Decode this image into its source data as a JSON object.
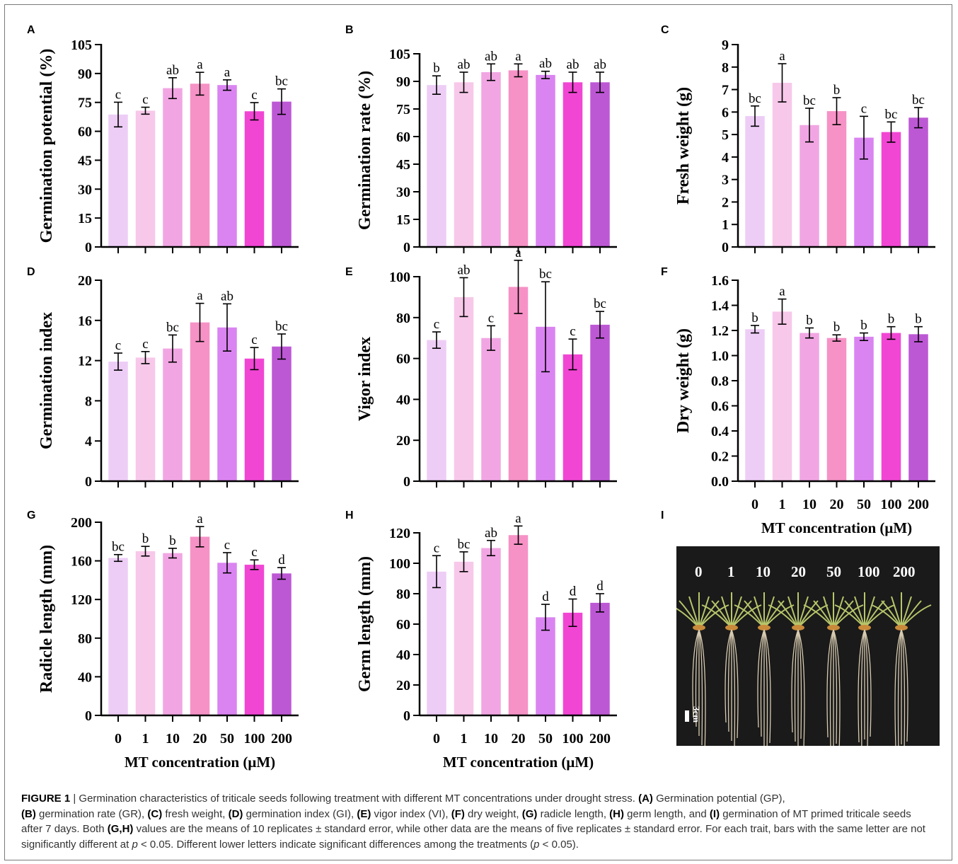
{
  "chart_data": [
    {
      "panel": "A",
      "type": "bar",
      "ylabel": "Germination potential (%)",
      "ylim": [
        0,
        105
      ],
      "yticks": [
        0,
        15,
        30,
        45,
        60,
        75,
        90,
        105
      ],
      "ytick_labels": [
        "0",
        "15",
        "30",
        "45",
        "60",
        "75",
        "90",
        "105"
      ],
      "categories": [
        "0",
        "1",
        "10",
        "20",
        "50",
        "100",
        "200"
      ],
      "values": [
        68.7,
        70.7,
        82.4,
        84.7,
        84.0,
        70.4,
        75.4
      ],
      "errors": [
        6.4,
        1.8,
        5.4,
        5.9,
        2.7,
        4.5,
        6.6
      ],
      "letters": [
        "c",
        "c",
        "ab",
        "a",
        "a",
        "c",
        "bc"
      ],
      "xlabel": ""
    },
    {
      "panel": "B",
      "type": "bar",
      "ylabel": "Germination rate (%)",
      "ylim": [
        0,
        105
      ],
      "yticks": [
        0,
        15,
        30,
        45,
        60,
        75,
        90,
        105
      ],
      "ytick_labels": [
        "0",
        "15",
        "30",
        "45",
        "60",
        "75",
        "90",
        "105"
      ],
      "categories": [
        "0",
        "1",
        "10",
        "20",
        "50",
        "100",
        "200"
      ],
      "values": [
        88.0,
        89.5,
        95.0,
        96.0,
        93.5,
        89.5,
        89.5
      ],
      "errors": [
        5.0,
        5.5,
        4.5,
        3.5,
        2.0,
        5.5,
        5.5
      ],
      "letters": [
        "b",
        "ab",
        "ab",
        "a",
        "ab",
        "ab",
        "ab"
      ],
      "xlabel": ""
    },
    {
      "panel": "C",
      "type": "bar",
      "ylabel": "Fresh weight (g)",
      "ylim": [
        0,
        9
      ],
      "yticks": [
        0,
        1,
        2,
        3,
        4,
        5,
        6,
        7,
        8,
        9
      ],
      "ytick_labels": [
        "0",
        "1",
        "2",
        "3",
        "4",
        "5",
        "6",
        "7",
        "8",
        "9"
      ],
      "categories": [
        "0",
        "1",
        "10",
        "20",
        "50",
        "100",
        "200"
      ],
      "values": [
        5.82,
        7.3,
        5.42,
        6.04,
        4.86,
        5.11,
        5.75
      ],
      "errors": [
        0.45,
        0.85,
        0.75,
        0.6,
        0.95,
        0.45,
        0.45
      ],
      "letters": [
        "bc",
        "a",
        "bc",
        "b",
        "c",
        "bc",
        "bc"
      ],
      "xlabel": ""
    },
    {
      "panel": "D",
      "type": "bar",
      "ylabel": "Germination index",
      "ylim": [
        0,
        20
      ],
      "yticks": [
        0,
        4,
        8,
        12,
        16,
        20
      ],
      "ytick_labels": [
        "0",
        "4",
        "8",
        "12",
        "16",
        "20"
      ],
      "categories": [
        "0",
        "1",
        "10",
        "20",
        "50",
        "100",
        "200"
      ],
      "values": [
        11.9,
        12.3,
        13.2,
        15.8,
        15.3,
        12.2,
        13.4
      ],
      "errors": [
        0.85,
        0.6,
        1.35,
        1.9,
        2.35,
        1.1,
        1.25
      ],
      "letters": [
        "c",
        "c",
        "bc",
        "a",
        "ab",
        "c",
        "bc"
      ],
      "xlabel": ""
    },
    {
      "panel": "E",
      "type": "bar",
      "ylabel": "Vigor index",
      "ylim": [
        0,
        120
      ],
      "yticks": [
        0,
        20,
        40,
        60,
        80,
        100
      ],
      "ytick_labels": [
        "0",
        "20",
        "40",
        "60",
        "80",
        "100"
      ],
      "categories": [
        "0",
        "1",
        "10",
        "20",
        "50",
        "100",
        "200"
      ],
      "values": [
        69.0,
        90.0,
        70.0,
        95.0,
        75.5,
        62.0,
        76.5
      ],
      "errors": [
        4.0,
        9.5,
        6.0,
        13.0,
        22.0,
        7.5,
        6.5
      ],
      "letters": [
        "c",
        "ab",
        "c",
        "a",
        "bc",
        "c",
        "bc"
      ],
      "xlabel": ""
    },
    {
      "panel": "F",
      "type": "bar",
      "ylabel": "Dry weight (g)",
      "ylim": [
        0,
        1.6
      ],
      "yticks": [
        0,
        0.2,
        0.4,
        0.6,
        0.8,
        1.0,
        1.2,
        1.4,
        1.6
      ],
      "ytick_labels": [
        "0.0",
        "0.2",
        "0.4",
        "0.6",
        "0.8",
        "1.0",
        "1.2",
        "1.4",
        "1.6"
      ],
      "categories": [
        "0",
        "1",
        "10",
        "20",
        "50",
        "100",
        "200"
      ],
      "values": [
        1.21,
        1.35,
        1.18,
        1.14,
        1.15,
        1.18,
        1.17
      ],
      "errors": [
        0.03,
        0.1,
        0.04,
        0.025,
        0.03,
        0.05,
        0.06
      ],
      "letters": [
        "b",
        "a",
        "b",
        "b",
        "b",
        "b",
        "b"
      ],
      "xlabel": "MT concentration (μM)"
    },
    {
      "panel": "G",
      "type": "bar",
      "ylabel": "Radicle length (mm)",
      "ylim": [
        0,
        210
      ],
      "yticks": [
        0,
        40,
        80,
        120,
        160,
        200
      ],
      "ytick_labels": [
        "0",
        "40",
        "80",
        "120",
        "160",
        "200"
      ],
      "categories": [
        "0",
        "1",
        "10",
        "20",
        "50",
        "100",
        "200"
      ],
      "values": [
        163,
        170,
        168,
        185,
        158,
        156,
        147
      ],
      "errors": [
        3.5,
        5.0,
        5.0,
        10.5,
        10.5,
        5.0,
        6.0
      ],
      "letters": [
        "bc",
        "b",
        "b",
        "a",
        "c",
        "c",
        "d"
      ],
      "xlabel": "MT concentration (μM)"
    },
    {
      "panel": "H",
      "type": "bar",
      "ylabel": "Germ length (mm)",
      "ylim": [
        0,
        130
      ],
      "yticks": [
        0,
        20,
        40,
        60,
        80,
        100,
        120
      ],
      "ytick_labels": [
        "0",
        "20",
        "40",
        "60",
        "80",
        "100",
        "120"
      ],
      "categories": [
        "0",
        "1",
        "10",
        "20",
        "50",
        "100",
        "200"
      ],
      "values": [
        94.5,
        101.0,
        110.0,
        118.5,
        64.5,
        67.5,
        74.0
      ],
      "errors": [
        10.5,
        6.5,
        5.0,
        6.0,
        8.5,
        9.0,
        6.0
      ],
      "letters": [
        "c",
        "bc",
        "ab",
        "a",
        "d",
        "d",
        "d"
      ],
      "xlabel": "MT concentration (μM)"
    }
  ],
  "bar_colors": [
    "#edcdf6",
    "#f7c8e9",
    "#f1a6e3",
    "#f692c6",
    "#da84f1",
    "#f146d4",
    "#bd58d5"
  ],
  "panel_I": {
    "label": "I",
    "seedling_labels": [
      "0",
      "1",
      "10",
      "20",
      "50",
      "100",
      "200"
    ],
    "scale_label": "3cm"
  },
  "caption": {
    "title": "FIGURE 1",
    "sep": " | ",
    "intro": "Germination characteristics of triticale seeds following treatment with different MT concentrations under drought stress. ",
    "parts": [
      {
        "tag": "(A)",
        "text": " Germination potential (GP),"
      },
      {
        "tag": "(B)",
        "text": " germination rate (GR), "
      },
      {
        "tag": "(C)",
        "text": " fresh weight, "
      },
      {
        "tag": "(D)",
        "text": " germination index (GI), "
      },
      {
        "tag": "(E)",
        "text": " vigor index (VI), "
      },
      {
        "tag": "(F)",
        "text": " dry weight, "
      },
      {
        "tag": "(G)",
        "text": " radicle length, "
      },
      {
        "tag": "(H)",
        "text": " germ length, and "
      },
      {
        "tag": "(I)",
        "text": " germination of MT primed triticale seeds after 7 days. Both "
      },
      {
        "tag": "(G,H)",
        "text": " values are the means of 10 replicates ± standard error, while other data are the means of five replicates ± standard error. For each trait, bars with the same letter are not significantly different at "
      }
    ],
    "p1": "p",
    "after_p1": " < 0.05. Different lower letters indicate significant differences among the treatments (",
    "p2": "p",
    "after_p2": " < 0.05)."
  }
}
